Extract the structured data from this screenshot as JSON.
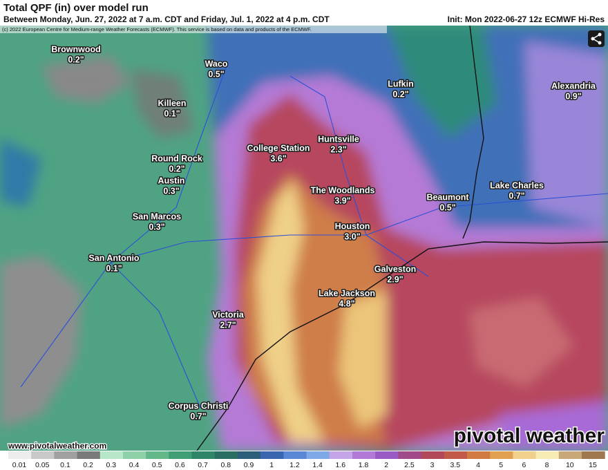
{
  "header": {
    "title": "Total QPF (in) over model run",
    "subtitle": "Between Monday, Jun. 27, 2022 at 7 a.m. CDT and Friday, Jul. 1, 2022 at 4 p.m. CDT",
    "init": "Init: Mon 2022-06-27 12z ECMWF Hi-Res",
    "copyright": "(c) 2022 European Centre for Medium-range Weather Forecasts (ECMWF). This service is based on data and products of the ECMWF."
  },
  "cities": [
    {
      "name": "Brownwood",
      "value": "0.2\""
    },
    {
      "name": "Waco",
      "value": "0.5\""
    },
    {
      "name": "Killeen",
      "value": "0.1\""
    },
    {
      "name": "Lufkin",
      "value": "0.2\""
    },
    {
      "name": "Alexandria",
      "value": "0.9\""
    },
    {
      "name": "College Station",
      "value": "3.6\""
    },
    {
      "name": "Huntsville",
      "value": "2.3\""
    },
    {
      "name": "Round Rock",
      "value": "0.2\""
    },
    {
      "name": "Austin",
      "value": "0.3\""
    },
    {
      "name": "The Woodlands",
      "value": "3.9\""
    },
    {
      "name": "Beaumont",
      "value": "0.5\""
    },
    {
      "name": "Lake Charles",
      "value": "0.7\""
    },
    {
      "name": "San Marcos",
      "value": "0.3\""
    },
    {
      "name": "Houston",
      "value": "3.0\""
    },
    {
      "name": "San Antonio",
      "value": "0.1\""
    },
    {
      "name": "Galveston",
      "value": "2.9\""
    },
    {
      "name": "Lake Jackson",
      "value": "4.8\""
    },
    {
      "name": "Victoria",
      "value": "2.7\""
    },
    {
      "name": "Corpus Christi",
      "value": "0.7\""
    }
  ],
  "colorbar": {
    "labels": [
      "0.01",
      "0.05",
      "0.1",
      "0.2",
      "0.3",
      "0.4",
      "0.5",
      "0.6",
      "0.7",
      "0.8",
      "0.9",
      "1",
      "1.2",
      "1.4",
      "1.6",
      "1.8",
      "2",
      "2.5",
      "3",
      "3.5",
      "4",
      "5",
      "6",
      "8",
      "10",
      "15"
    ],
    "colors": [
      "#ededed",
      "#c8c8c8",
      "#a0a0a0",
      "#7a7a7a",
      "#b8e6c8",
      "#8ed0a8",
      "#63b88a",
      "#3f9e74",
      "#2f8568",
      "#2a6e62",
      "#2d5f7a",
      "#3a66b0",
      "#5a86d6",
      "#7fa8e6",
      "#c4a6e8",
      "#b07ad6",
      "#9a5ac4",
      "#a04a8a",
      "#b0485a",
      "#c25a4a",
      "#d27a44",
      "#e0a050",
      "#f0d08a",
      "#f6ecb4",
      "#c8a878",
      "#a07850"
    ]
  },
  "footer": {
    "website": "www.pivotalweather.com",
    "brand": "pivotal weather"
  }
}
